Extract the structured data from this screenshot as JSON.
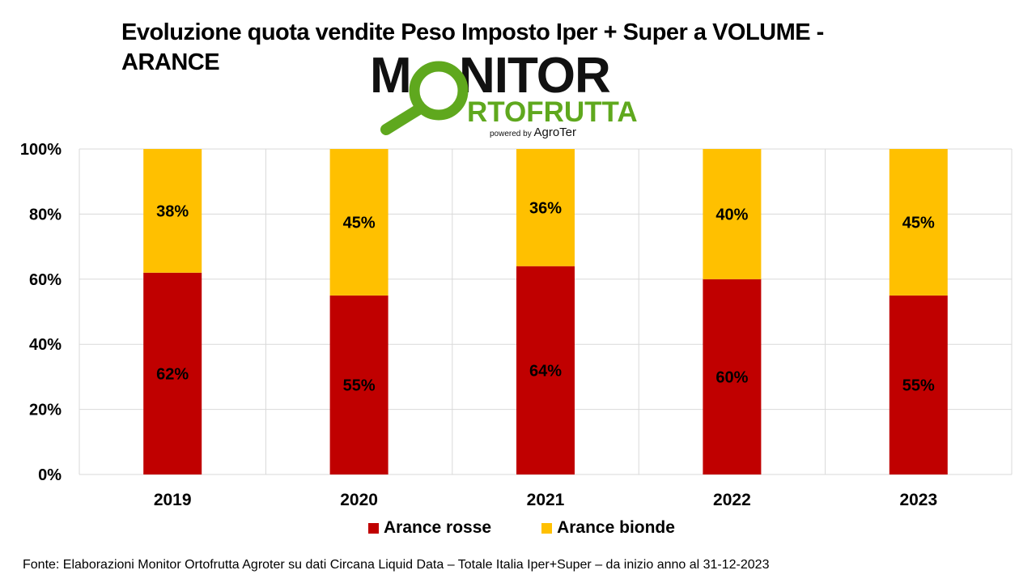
{
  "title": "Evoluzione quota vendite Peso Imposto Iper + Super a VOLUME - ARANCE",
  "logo": {
    "line1": "MONITOR",
    "line2": "ORTOFRUTTA",
    "tagline_prefix": "powered by",
    "tagline_brand": "AgroTer",
    "colors": {
      "dark": "#111111",
      "green": "#5fa81e"
    }
  },
  "footer": "Fonte: Elaborazioni Monitor Ortofrutta Agroter su dati Circana Liquid Data – Totale Italia Iper+Super –  da inizio anno al 31-12-2023",
  "chart_data": {
    "type": "bar",
    "stacked": true,
    "categories": [
      "2019",
      "2020",
      "2021",
      "2022",
      "2023"
    ],
    "series": [
      {
        "name": "Arance rosse",
        "color": "#c00000",
        "values": [
          62,
          55,
          64,
          60,
          55
        ],
        "labels": [
          "62%",
          "55%",
          "64%",
          "60%",
          "55%"
        ]
      },
      {
        "name": "Arance bionde",
        "color": "#ffc000",
        "values": [
          38,
          45,
          36,
          40,
          45
        ],
        "labels": [
          "38%",
          "45%",
          "36%",
          "40%",
          "45%"
        ]
      }
    ],
    "ylim": [
      0,
      100
    ],
    "yticks": [
      0,
      20,
      40,
      60,
      80,
      100
    ],
    "ytick_labels": [
      "0%",
      "20%",
      "40%",
      "60%",
      "80%",
      "100%"
    ],
    "grid": true,
    "legend_position": "bottom",
    "xlabel": "",
    "ylabel": ""
  }
}
